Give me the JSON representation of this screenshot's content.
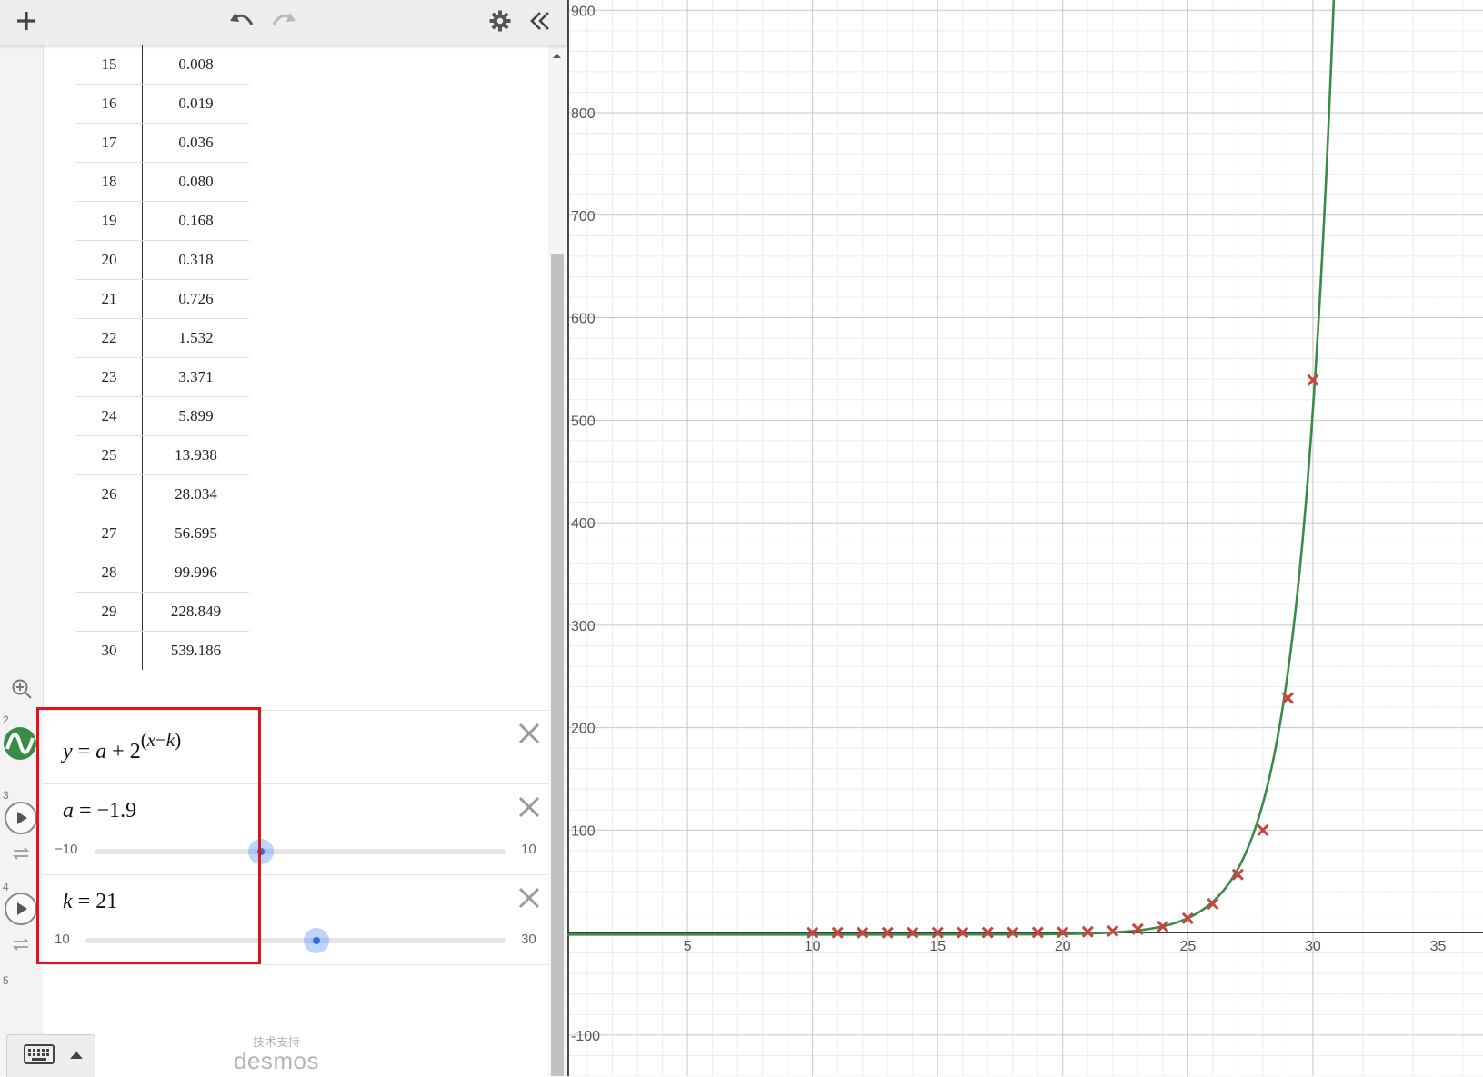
{
  "toolbar": {
    "add_icon": "plus-icon",
    "undo_icon": "undo-icon",
    "redo_icon": "redo-icon",
    "settings_icon": "gear-icon",
    "collapse_icon": "double-chevron-left-icon"
  },
  "table": {
    "rows": [
      {
        "x": "15",
        "y": "0.008"
      },
      {
        "x": "16",
        "y": "0.019"
      },
      {
        "x": "17",
        "y": "0.036"
      },
      {
        "x": "18",
        "y": "0.080"
      },
      {
        "x": "19",
        "y": "0.168"
      },
      {
        "x": "20",
        "y": "0.318"
      },
      {
        "x": "21",
        "y": "0.726"
      },
      {
        "x": "22",
        "y": "1.532"
      },
      {
        "x": "23",
        "y": "3.371"
      },
      {
        "x": "24",
        "y": "5.899"
      },
      {
        "x": "25",
        "y": "13.938"
      },
      {
        "x": "26",
        "y": "28.034"
      },
      {
        "x": "27",
        "y": "56.695"
      },
      {
        "x": "28",
        "y": "99.996"
      },
      {
        "x": "29",
        "y": "228.849"
      },
      {
        "x": "30",
        "y": "539.186"
      }
    ]
  },
  "expressions": [
    {
      "index": "2",
      "lhs": "y",
      "eq": "=",
      "a": "a",
      "plus": "+",
      "base": "2",
      "exponent_open": "(",
      "exponent_x": "x",
      "exponent_minus": "−",
      "exponent_k": "k",
      "exponent_close": ")"
    },
    {
      "index": "3",
      "name": "a",
      "eq": "=",
      "value": "−1.9",
      "slider_min": "−10",
      "slider_max": "10",
      "slider_value": -1.9,
      "slider_range": [
        -10,
        10
      ]
    },
    {
      "index": "4",
      "name": "k",
      "eq": "=",
      "value": "21",
      "slider_min": "10",
      "slider_max": "30",
      "slider_value": 21,
      "slider_range": [
        10,
        30
      ]
    },
    {
      "index": "5"
    }
  ],
  "footer": {
    "keyboard_icon": "keyboard-icon",
    "powered_cn": "技术支持",
    "powered_brand": "desmos"
  },
  "colors": {
    "curve": "#388c46",
    "points": "#c74440",
    "highlight": "#e0141e",
    "slider_knob": "#2f6fd8"
  },
  "chart_data": {
    "type": "scatter",
    "x_ticks": [
      "5",
      "10",
      "15",
      "20",
      "25",
      "30",
      "35"
    ],
    "y_ticks": [
      "-100",
      "100",
      "200",
      "300",
      "400",
      "500",
      "600",
      "700",
      "800",
      "900"
    ],
    "xlim": [
      0.2,
      36.8
    ],
    "ylim": [
      -140,
      910
    ],
    "grid": true,
    "series": [
      {
        "points_x": [
          10,
          11,
          12,
          13,
          14,
          15,
          16,
          17,
          18,
          19,
          20,
          21,
          22,
          23,
          24,
          25,
          26,
          27,
          28,
          29,
          30
        ],
        "points_y": [
          0,
          0,
          0,
          0,
          0,
          0.008,
          0.019,
          0.036,
          0.08,
          0.168,
          0.318,
          0.726,
          1.532,
          3.371,
          5.899,
          13.938,
          28.034,
          56.695,
          99.996,
          228.849,
          539.186
        ]
      }
    ],
    "curve": {
      "a": -1.9,
      "k": 21
    }
  }
}
